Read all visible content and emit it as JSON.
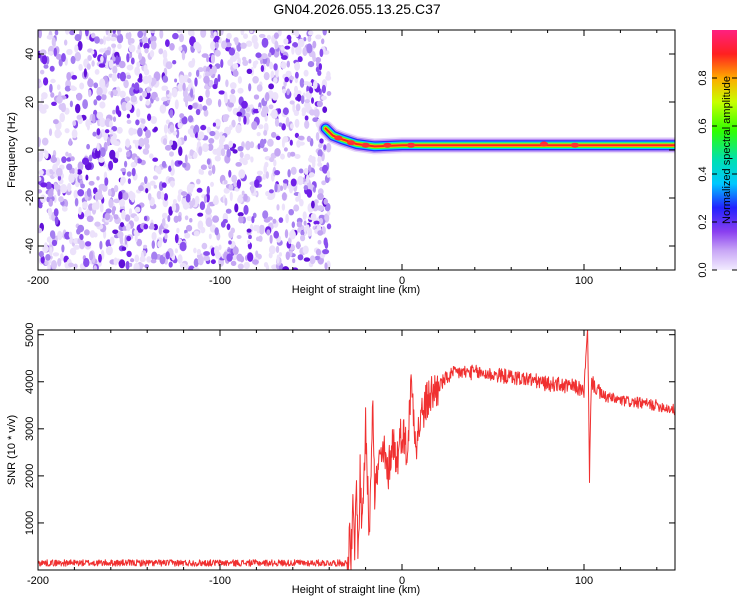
{
  "title": "GN04.2026.055.13.25.C37",
  "chart_data": [
    {
      "type": "heatmap",
      "xlabel": "Height of straight line (km)",
      "ylabel": "Frequency (Hz)",
      "xlim": [
        -200,
        150
      ],
      "ylim": [
        -50,
        50
      ],
      "xticks": [
        -200,
        -100,
        0,
        100
      ],
      "yticks": [
        -40,
        -20,
        0,
        20,
        40
      ],
      "noise_region_km": [
        -200,
        -40
      ],
      "signal_track": {
        "description": "narrow band near 2 Hz from about -40 km to 150 km",
        "points": [
          {
            "x": -42,
            "y": 9
          },
          {
            "x": -38,
            "y": 6
          },
          {
            "x": -33,
            "y": 4.5
          },
          {
            "x": -25,
            "y": 2.5
          },
          {
            "x": -15,
            "y": 1.5
          },
          {
            "x": 0,
            "y": 2
          },
          {
            "x": 20,
            "y": 2
          },
          {
            "x": 60,
            "y": 2
          },
          {
            "x": 100,
            "y": 2
          },
          {
            "x": 150,
            "y": 2
          }
        ],
        "amplitude": 0.95
      },
      "colorbar": {
        "label": "Normalized spectral amplitude",
        "range": [
          0,
          1
        ],
        "ticks": [
          "0.0",
          "0.2",
          "0.4",
          "0.6",
          "0.8"
        ],
        "tick_values": [
          0.0,
          0.2,
          0.4,
          0.6,
          0.8
        ]
      }
    },
    {
      "type": "line",
      "xlabel": "Height of straight line (km)",
      "ylabel": "SNR (10 * v/v)",
      "xlim": [
        -200,
        150
      ],
      "ylim": [
        0,
        5100
      ],
      "xticks": [
        -200,
        -100,
        0,
        100
      ],
      "yticks": [
        1000,
        2000,
        3000,
        4000,
        5000
      ],
      "color": "#f03030",
      "series": [
        {
          "name": "SNR",
          "x": [
            -200,
            -100,
            -30,
            -29,
            -28,
            -27,
            -26,
            -25,
            -24,
            -23,
            -22,
            -20,
            -18,
            -16,
            -15,
            -13,
            -10,
            -8,
            -5,
            -3,
            0,
            3,
            5,
            8,
            10,
            12,
            15,
            18,
            20,
            25,
            30,
            40,
            50,
            60,
            70,
            75,
            80,
            85,
            90,
            95,
            100,
            102,
            103,
            104,
            110,
            120,
            130,
            140,
            150
          ],
          "y": [
            150,
            150,
            150,
            700,
            250,
            1200,
            400,
            1800,
            300,
            2100,
            900,
            3000,
            800,
            3900,
            1600,
            2200,
            2500,
            2000,
            2800,
            2300,
            3000,
            2500,
            4000,
            2700,
            3200,
            3400,
            3700,
            3800,
            3900,
            4100,
            4200,
            4200,
            4150,
            4100,
            4050,
            4000,
            3950,
            3950,
            3900,
            3900,
            3800,
            5100,
            2000,
            4000,
            3700,
            3600,
            3550,
            3500,
            3400
          ]
        }
      ]
    }
  ]
}
